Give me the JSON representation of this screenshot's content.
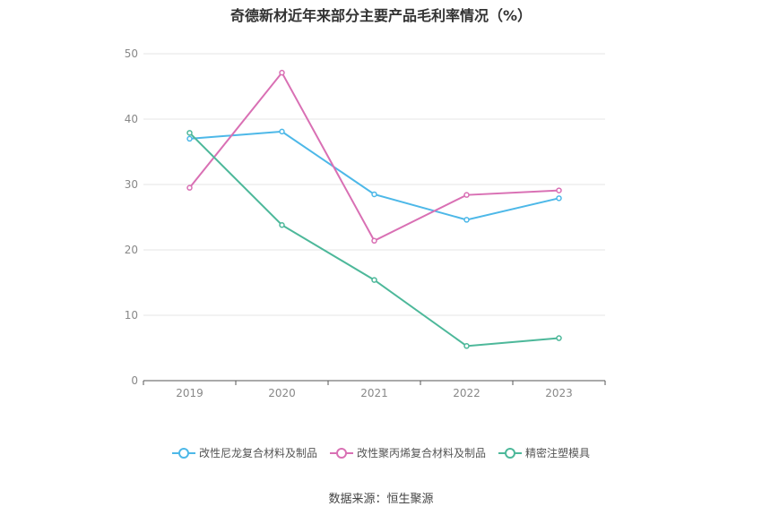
{
  "chart_data": {
    "type": "line",
    "title": "奇德新材近年来部分主要产品毛利率情况（%）",
    "categories": [
      "2019",
      "2020",
      "2021",
      "2022",
      "2023"
    ],
    "ylim": [
      0,
      50
    ],
    "yticks": [
      "0",
      "10",
      "20",
      "30",
      "40",
      "50"
    ],
    "grid": true,
    "legend_position": "bottom",
    "series": [
      {
        "name": "改性尼龙复合材料及制品",
        "color": "#4db8e8",
        "values": [
          37.0,
          38.1,
          28.5,
          24.6,
          27.9
        ]
      },
      {
        "name": "改性聚丙烯复合材料及制品",
        "color": "#d970b4",
        "values": [
          29.5,
          47.1,
          21.4,
          28.4,
          29.1
        ]
      },
      {
        "name": "精密注塑模具",
        "color": "#4db89a",
        "values": [
          37.9,
          23.8,
          15.4,
          5.3,
          6.5
        ]
      }
    ]
  },
  "source": "数据来源：恒生聚源"
}
